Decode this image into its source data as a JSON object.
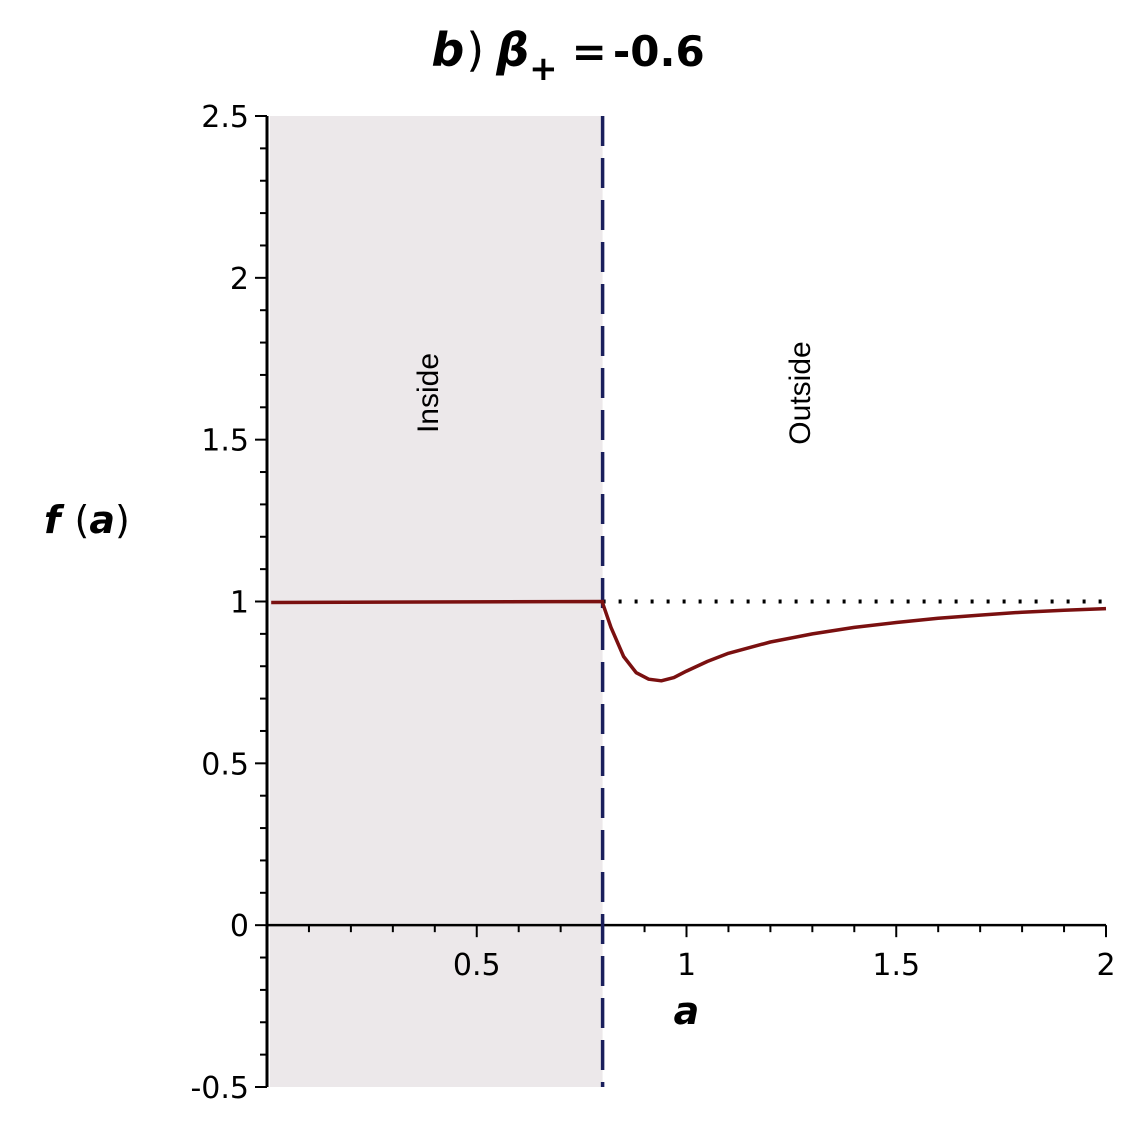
{
  "chart_data": {
    "type": "line",
    "title": {
      "panel": "b",
      "close_paren": ")",
      "symbol": "β",
      "subscript": "+",
      "equals": "=",
      "value": "-0.6"
    },
    "xlabel": "a",
    "ylabel": {
      "func": "f",
      "arg": "a",
      "open": "(",
      "close": ")"
    },
    "xlim": [
      0,
      2
    ],
    "ylim": [
      -0.5,
      2.5
    ],
    "x_ticks": [
      0.5,
      1,
      1.5,
      2
    ],
    "x_tick_labels": [
      "0.5",
      "1",
      "1.5",
      "2"
    ],
    "y_ticks": [
      -0.5,
      0,
      0.5,
      1,
      1.5,
      2,
      2.5
    ],
    "y_tick_labels": [
      "-0.5",
      "0",
      "0.5",
      "1",
      "1.5",
      "2",
      "2.5"
    ],
    "regions": [
      {
        "label": "Inside",
        "x_range": [
          0,
          0.8
        ]
      },
      {
        "label": "Outside",
        "x_range": [
          0.8,
          2
        ]
      }
    ],
    "boundary_x": 0.8,
    "reference_line": {
      "y": 1,
      "x_range": [
        0.8,
        2
      ],
      "style": "dotted"
    },
    "series": [
      {
        "color": "#7a1010",
        "x": [
          0.01,
          0.8,
          0.8,
          0.82,
          0.85,
          0.88,
          0.91,
          0.94,
          0.97,
          1.0,
          1.05,
          1.1,
          1.2,
          1.3,
          1.4,
          1.5,
          1.6,
          1.7,
          1.8,
          1.9,
          2.0
        ],
        "y": [
          0.997,
          1.0,
          0.995,
          0.92,
          0.83,
          0.78,
          0.76,
          0.755,
          0.765,
          0.785,
          0.815,
          0.84,
          0.875,
          0.9,
          0.92,
          0.935,
          0.948,
          0.958,
          0.967,
          0.973,
          0.978
        ]
      }
    ],
    "colors": {
      "shade": "#ece8ea",
      "boundary": "#1a1f5c",
      "curve": "#7a1010",
      "reference": "#000000"
    }
  }
}
